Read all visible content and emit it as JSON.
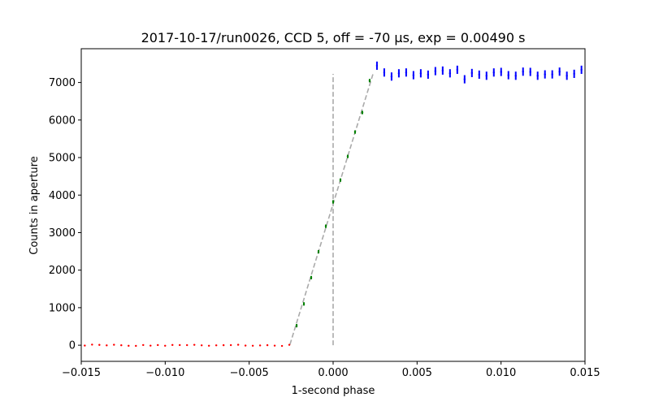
{
  "chart_data": {
    "type": "scatter",
    "title": "2017-10-17/run0026, CCD 5, off = -70 μs, exp = 0.00490 s",
    "xlabel": "1-second phase",
    "ylabel": "Counts in aperture",
    "xlim": [
      -0.015,
      0.015
    ],
    "ylim": [
      -430,
      7900
    ],
    "xticks": [
      -0.015,
      -0.01,
      -0.005,
      0.0,
      0.005,
      0.01,
      0.015
    ],
    "xtick_labels": [
      "−0.015",
      "−0.010",
      "−0.005",
      "0.000",
      "0.005",
      "0.010",
      "0.015"
    ],
    "yticks": [
      0,
      1000,
      2000,
      3000,
      4000,
      5000,
      6000,
      7000
    ],
    "ytick_labels": [
      "0",
      "1000",
      "2000",
      "3000",
      "4000",
      "5000",
      "6000",
      "7000"
    ],
    "grid": false,
    "x_start": -0.01479,
    "x_step": 0.000435,
    "series": [
      {
        "color": "#ff0000",
        "err": 12,
        "values": [
          -10,
          15,
          8,
          -5,
          12,
          -2,
          -15,
          -18,
          5,
          -12,
          3,
          -14,
          6,
          4,
          2,
          10,
          -4,
          -14,
          -3,
          0,
          2,
          12,
          -10,
          -14,
          -6,
          0,
          -12,
          -20,
          10
        ]
      },
      {
        "color": "#008000",
        "err": 45,
        "values": [
          520,
          1100,
          1800,
          2490,
          3170,
          3820,
          4400,
          5030,
          5680,
          6200,
          7050
        ]
      },
      {
        "color": "#0000ff",
        "err": 110,
        "values": [
          7448,
          7267,
          7159,
          7245,
          7267,
          7195,
          7245,
          7209,
          7303,
          7318,
          7245,
          7339,
          7086,
          7253,
          7209,
          7180,
          7267,
          7282,
          7195,
          7180,
          7289,
          7282,
          7180,
          7216,
          7216,
          7289,
          7180,
          7231,
          7339
        ]
      }
    ],
    "fit_line": {
      "color": "#aaaaaa",
      "style": "dashed",
      "points": [
        [
          -0.00257,
          20
        ],
        [
          0.00237,
          7220
        ]
      ]
    },
    "vertical_line": {
      "color": "#aaaaaa",
      "style": "dashed",
      "x": 0.0,
      "y_range": [
        0,
        7230
      ]
    }
  }
}
